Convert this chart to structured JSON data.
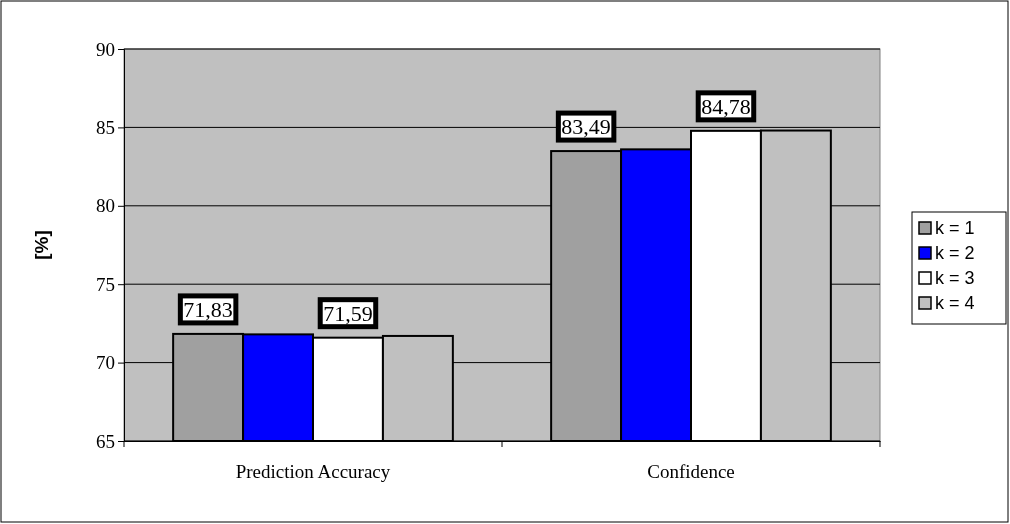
{
  "chart_data": {
    "type": "bar",
    "ylabel": "[%]",
    "categories": [
      "Prediction Accuracy",
      "Confidence"
    ],
    "series": [
      {
        "name": "k = 1",
        "color": "#a0a0a0",
        "values": [
          71.83,
          83.49
        ],
        "value_labels": [
          "71,83",
          "83,49"
        ]
      },
      {
        "name": "k = 2",
        "color": "#0000ff",
        "values": [
          71.8,
          83.6
        ],
        "value_labels": [
          null,
          null
        ]
      },
      {
        "name": "k = 3",
        "color": "#ffffff",
        "values": [
          71.59,
          84.78
        ],
        "value_labels": [
          "71,59",
          "84,78"
        ]
      },
      {
        "name": "k = 4",
        "color": "#c0c0c0",
        "values": [
          71.7,
          84.8
        ],
        "value_labels": [
          null,
          null
        ]
      }
    ],
    "ylim": [
      65,
      90
    ],
    "yticks": [
      65,
      70,
      75,
      80,
      85,
      90
    ],
    "grid": "y",
    "legend": "right"
  }
}
